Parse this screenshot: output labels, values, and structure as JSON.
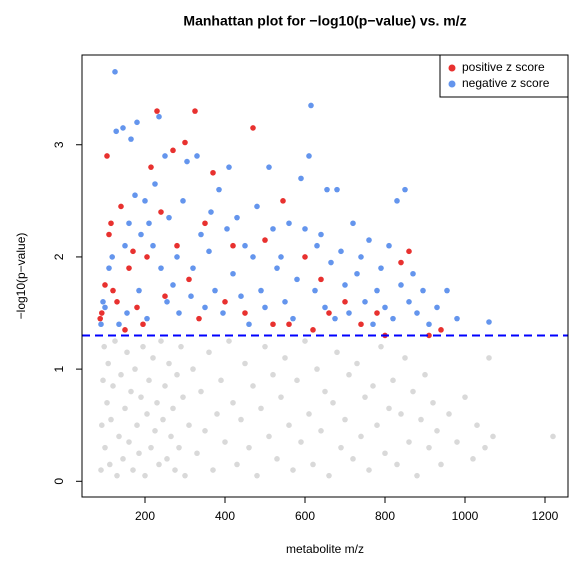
{
  "chart_data": {
    "type": "scatter",
    "title": "Manhattan plot for −log10(p−value) vs. m/z",
    "x_label": "metabolite m/z",
    "y_label": "−log10(p−value)",
    "xlim": [
      42.5,
      1257.5
    ],
    "ylim": [
      -0.14,
      3.8
    ],
    "xticks": [
      200,
      400,
      600,
      800,
      1000,
      1200
    ],
    "yticks": [
      0,
      1,
      2,
      3
    ],
    "threshold": 1.3,
    "threshold_color": "#0000ff",
    "legend": "top-right",
    "series": [
      {
        "color": "#d9d9d9",
        "x": [
          90,
          92,
          95,
          98,
          100,
          105,
          108,
          112,
          115,
          120,
          125,
          130,
          135,
          140,
          145,
          150,
          155,
          160,
          165,
          170,
          175,
          180,
          185,
          190,
          195,
          200,
          205,
          210,
          215,
          220,
          225,
          230,
          235,
          240,
          245,
          250,
          255,
          260,
          265,
          270,
          275,
          280,
          285,
          290,
          295,
          300,
          310,
          320,
          330,
          340,
          350,
          360,
          370,
          380,
          390,
          400,
          410,
          420,
          430,
          440,
          450,
          460,
          470,
          480,
          490,
          500,
          510,
          520,
          530,
          540,
          550,
          560,
          570,
          580,
          590,
          600,
          610,
          620,
          630,
          640,
          650,
          660,
          670,
          680,
          690,
          700,
          710,
          720,
          730,
          740,
          750,
          760,
          770,
          780,
          790,
          800,
          810,
          820,
          830,
          840,
          850,
          860,
          870,
          880,
          890,
          900,
          910,
          920,
          930,
          940,
          960,
          980,
          1000,
          1020,
          1030,
          1050,
          1060,
          1070,
          1220
        ],
        "values": [
          0.1,
          0.5,
          0.9,
          1.2,
          0.3,
          0.7,
          1.05,
          0.15,
          0.55,
          0.85,
          1.25,
          0.05,
          0.4,
          0.95,
          0.2,
          0.65,
          1.15,
          0.35,
          0.8,
          0.1,
          1.0,
          0.5,
          0.25,
          0.75,
          1.2,
          0.05,
          0.6,
          0.9,
          0.3,
          1.1,
          0.45,
          0.7,
          0.15,
          1.25,
          0.55,
          0.85,
          0.2,
          1.05,
          0.4,
          0.65,
          0.1,
          0.95,
          0.3,
          1.2,
          0.75,
          0.05,
          0.5,
          1.0,
          0.25,
          0.8,
          0.45,
          1.15,
          0.1,
          0.6,
          0.9,
          0.35,
          1.25,
          0.7,
          0.15,
          0.55,
          1.05,
          0.3,
          0.85,
          0.05,
          0.65,
          1.2,
          0.4,
          0.95,
          0.2,
          0.75,
          1.1,
          0.5,
          0.1,
          0.9,
          0.35,
          1.25,
          0.6,
          0.15,
          1.0,
          0.45,
          0.8,
          0.05,
          0.7,
          1.15,
          0.3,
          0.55,
          0.95,
          0.2,
          1.05,
          0.4,
          0.75,
          0.1,
          0.85,
          0.5,
          1.2,
          0.25,
          0.65,
          0.9,
          0.15,
          0.6,
          1.1,
          0.35,
          0.8,
          0.05,
          0.55,
          0.95,
          0.3,
          0.7,
          0.45,
          0.15,
          0.6,
          0.35,
          0.75,
          0.2,
          0.5,
          0.3,
          1.1,
          0.4,
          0.4
        ]
      },
      {
        "name": "positive z score",
        "color": "#e8312f",
        "x": [
          88,
          92,
          100,
          105,
          110,
          115,
          120,
          130,
          140,
          150,
          160,
          170,
          180,
          195,
          205,
          215,
          230,
          240,
          250,
          270,
          280,
          300,
          310,
          325,
          335,
          350,
          370,
          400,
          420,
          450,
          470,
          500,
          520,
          545,
          560,
          600,
          620,
          640,
          660,
          700,
          740,
          780,
          800,
          840,
          860,
          910,
          940
        ],
        "values": [
          1.45,
          1.5,
          1.75,
          2.9,
          2.2,
          2.3,
          1.7,
          1.6,
          2.45,
          1.35,
          1.9,
          2.05,
          1.55,
          1.4,
          2.0,
          2.8,
          3.3,
          2.4,
          1.65,
          2.95,
          2.1,
          3.02,
          1.8,
          3.3,
          1.45,
          2.3,
          2.75,
          1.6,
          2.1,
          1.5,
          3.15,
          2.15,
          1.4,
          2.5,
          1.4,
          2.0,
          1.35,
          1.8,
          1.5,
          1.6,
          1.4,
          1.5,
          1.3,
          1.95,
          2.05,
          1.3,
          1.35
        ]
      },
      {
        "name": "negative z score",
        "color": "#6495ed",
        "x": [
          90,
          95,
          100,
          110,
          118,
          125,
          128,
          135,
          145,
          150,
          155,
          160,
          165,
          175,
          180,
          185,
          190,
          200,
          205,
          210,
          220,
          225,
          235,
          240,
          250,
          255,
          260,
          270,
          280,
          285,
          295,
          305,
          315,
          320,
          330,
          340,
          350,
          360,
          365,
          375,
          385,
          395,
          405,
          410,
          420,
          430,
          440,
          450,
          460,
          470,
          480,
          490,
          500,
          510,
          520,
          530,
          540,
          550,
          560,
          570,
          580,
          590,
          600,
          610,
          615,
          625,
          630,
          640,
          650,
          655,
          665,
          675,
          680,
          690,
          700,
          710,
          720,
          730,
          740,
          750,
          760,
          770,
          780,
          790,
          800,
          810,
          820,
          830,
          840,
          850,
          860,
          870,
          880,
          895,
          910,
          930,
          955,
          980,
          1060
        ],
        "values": [
          1.4,
          1.6,
          1.55,
          1.9,
          2.0,
          3.65,
          3.12,
          1.4,
          3.15,
          2.1,
          1.5,
          2.3,
          3.05,
          2.55,
          3.2,
          1.7,
          2.2,
          2.5,
          1.45,
          2.3,
          2.1,
          2.65,
          3.25,
          1.9,
          2.9,
          1.6,
          2.35,
          1.75,
          2.0,
          1.5,
          2.5,
          2.85,
          1.65,
          1.9,
          2.9,
          2.2,
          1.55,
          2.05,
          2.4,
          1.7,
          2.6,
          1.5,
          2.25,
          2.8,
          1.85,
          2.35,
          1.65,
          2.1,
          1.4,
          2.0,
          2.45,
          1.7,
          1.55,
          2.8,
          2.25,
          1.9,
          2.0,
          1.6,
          2.3,
          1.45,
          1.8,
          2.7,
          2.25,
          2.9,
          3.35,
          1.7,
          2.1,
          2.2,
          1.55,
          2.6,
          1.95,
          1.45,
          2.6,
          2.05,
          1.75,
          1.5,
          2.3,
          1.85,
          2.0,
          1.6,
          2.15,
          1.4,
          1.7,
          1.9,
          1.55,
          2.1,
          1.45,
          2.5,
          1.75,
          2.6,
          1.6,
          1.85,
          1.5,
          1.7,
          1.4,
          1.55,
          1.7,
          1.45,
          1.42
        ]
      }
    ]
  }
}
